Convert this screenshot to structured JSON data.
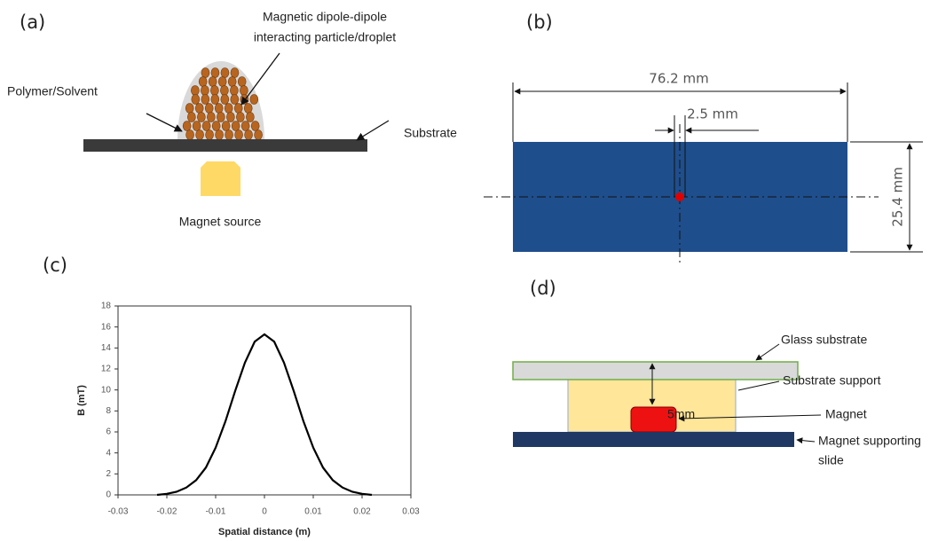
{
  "panels": {
    "a": {
      "label": "(a)",
      "particle_label": [
        "Magnetic dipole-dipole",
        "interacting particle/droplet"
      ],
      "polymer_label": "Polymer/Solvent",
      "substrate_label": "Substrate",
      "magnet_label": "Magnet source"
    },
    "b": {
      "label": "(b)",
      "length": "76.2 mm",
      "gap": "2.5 mm",
      "width": "25.4 mm"
    },
    "c": {
      "label": "(c)"
    },
    "d": {
      "label": "(d)",
      "glass": "Glass substrate",
      "support": "Substrate support",
      "distance": "5mm",
      "magnet": "Magnet",
      "slide": [
        "Magnet supporting",
        "slide"
      ]
    }
  },
  "chart_data": {
    "type": "line",
    "xlabel": "Spatial distance (m)",
    "ylabel": "B (mT)",
    "x": [
      -0.022,
      -0.02,
      -0.018,
      -0.016,
      -0.014,
      -0.012,
      -0.01,
      -0.008,
      -0.006,
      -0.004,
      -0.002,
      0,
      0.002,
      0.004,
      0.006,
      0.008,
      0.01,
      0.012,
      0.014,
      0.016,
      0.018,
      0.02,
      0.022
    ],
    "values": [
      0.0,
      0.1,
      0.3,
      0.7,
      1.4,
      2.6,
      4.5,
      7.0,
      9.9,
      12.6,
      14.6,
      15.3,
      14.6,
      12.6,
      9.9,
      7.0,
      4.5,
      2.6,
      1.4,
      0.7,
      0.3,
      0.1,
      0.0
    ],
    "color": "#000000",
    "xlim": [
      -0.03,
      0.03
    ],
    "xticks": [
      -0.03,
      -0.02,
      -0.01,
      0,
      0.01,
      0.02,
      0.03
    ],
    "ylim": [
      0,
      18
    ],
    "yticks": [
      0,
      2,
      4,
      6,
      8,
      10,
      12,
      14,
      16,
      18
    ]
  }
}
